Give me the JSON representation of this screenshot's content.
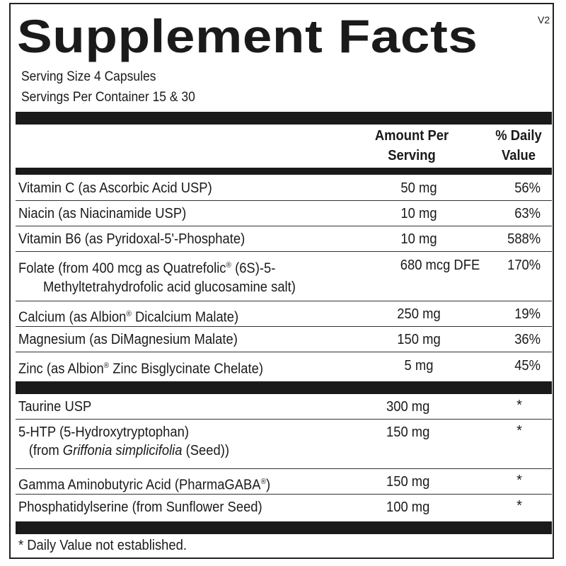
{
  "title": "Supplement Facts",
  "version": "V2",
  "serving_size": "Serving Size 4 Capsules",
  "servings_per_container": "Servings Per Container 15 & 30",
  "headers": {
    "amount_line1": "Amount Per",
    "amount_line2": "Serving",
    "dv_line1": "% Daily",
    "dv_line2": "Value"
  },
  "nutrients": [
    {
      "name": "Vitamin C (as Ascorbic Acid USP)",
      "amount": "50 mg",
      "dv": "56%"
    },
    {
      "name": "Niacin (as Niacinamide USP)",
      "amount": "10 mg",
      "dv": "63%"
    },
    {
      "name": "Vitamin B6 (as Pyridoxal-5'-Phosphate)",
      "amount": "10 mg",
      "dv": "588%"
    },
    {
      "name_a": "Folate (from 400 mcg as Quatrefolic",
      "name_b": " (6S)-5-",
      "name_line2": "Methyltetrahydrofolic acid glucosamine salt)",
      "amount": "680 mcg DFE",
      "dv": "170%"
    },
    {
      "name_a": "Calcium (as Albion",
      "name_b": " Dicalcium Malate)",
      "amount": "250 mg",
      "dv": "19%"
    },
    {
      "name": "Magnesium (as DiMagnesium Malate)",
      "amount": "150 mg",
      "dv": "36%"
    },
    {
      "name_a": "Zinc (as Albion",
      "name_b": " Zinc Bisglycinate Chelate)",
      "amount": "5 mg",
      "dv": "45%"
    }
  ],
  "other": [
    {
      "name": "Taurine USP",
      "amount": "300 mg",
      "dv": "*"
    },
    {
      "name": "5-HTP (5-Hydroxytryptophan)",
      "line2_a": "(from ",
      "line2_italic": "Griffonia simplicifolia",
      "line2_b": " (Seed))",
      "amount": "150 mg",
      "dv": "*"
    },
    {
      "name_a": "Gamma Aminobutyric Acid (PharmaGABA",
      "name_b": ")",
      "amount": "150 mg",
      "dv": "*"
    },
    {
      "name": "Phosphatidylserine (from Sunflower Seed)",
      "amount": "100 mg",
      "dv": "*"
    }
  ],
  "registered_mark": "®",
  "footnote": "* Daily Value not established."
}
